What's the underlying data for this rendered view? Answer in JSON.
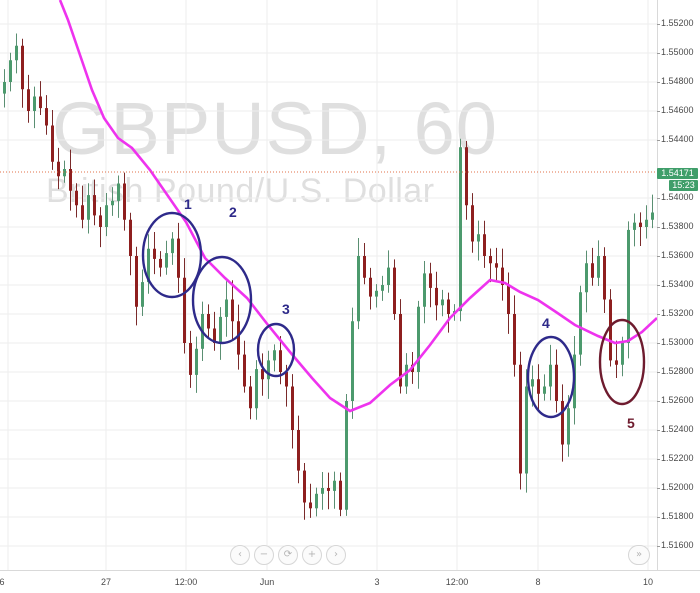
{
  "watermark": {
    "symbol": "GBPUSD, 60",
    "description": "British Pound/U.S. Dollar"
  },
  "price_axis": {
    "ticks": [
      "1.55200",
      "1.55000",
      "1.54800",
      "1.54600",
      "1.54400",
      "1.54000",
      "1.53800",
      "1.53600",
      "1.53400",
      "1.53200",
      "1.53000",
      "1.52800",
      "1.52600",
      "1.52400",
      "1.52200",
      "1.52000",
      "1.51800",
      "1.51600"
    ],
    "current_price": "1.54171",
    "countdown": "15:23"
  },
  "time_axis": {
    "labels": [
      "6",
      "27",
      "12:00",
      "Jun",
      "3",
      "12:00",
      "8",
      "10"
    ]
  },
  "annotations": [
    "1",
    "2",
    "3",
    "4",
    "5"
  ],
  "colors": {
    "up": "#4c9a6d",
    "down": "#8e1f1f",
    "ma": "#ee33ee",
    "circle": "#2e2a8a",
    "circle5": "#6e1b2e",
    "price_line": "#e0704a"
  },
  "navigation": {
    "scroll_left": "‹",
    "zoom_out": "−",
    "reset": "⟳",
    "zoom_in": "+",
    "scroll_right": "›",
    "scroll_end": "»"
  },
  "chart_data": {
    "type": "candlestick",
    "symbol": "GBPUSD",
    "interval": "60",
    "ylim": [
      1.515,
      1.5535
    ],
    "last_price": 1.54171,
    "close_approx": [
      1.548,
      1.5495,
      1.5505,
      1.5475,
      1.546,
      1.547,
      1.5462,
      1.545,
      1.5425,
      1.5415,
      1.542,
      1.5405,
      1.5395,
      1.5385,
      1.5402,
      1.5388,
      1.538,
      1.5395,
      1.5398,
      1.541,
      1.5385,
      1.536,
      1.5325,
      1.5342,
      1.5365,
      1.5358,
      1.5352,
      1.5362,
      1.5372,
      1.5345,
      1.53,
      1.5278,
      1.5296,
      1.532,
      1.531,
      1.53,
      1.5318,
      1.533,
      1.5315,
      1.5292,
      1.527,
      1.5255,
      1.5282,
      1.5275,
      1.5288,
      1.5295,
      1.528,
      1.527,
      1.524,
      1.5212,
      1.519,
      1.5186,
      1.5196,
      1.52,
      1.5198,
      1.5205,
      1.5185,
      1.526,
      1.5315,
      1.536,
      1.5345,
      1.5332,
      1.5336,
      1.534,
      1.5352,
      1.532,
      1.527,
      1.5285,
      1.528,
      1.5325,
      1.5348,
      1.5338,
      1.5326,
      1.533,
      1.532,
      1.5322,
      1.5435,
      1.5395,
      1.537,
      1.5375,
      1.536,
      1.5355,
      1.5352,
      1.534,
      1.532,
      1.5285,
      1.521,
      1.527,
      1.5275,
      1.5265,
      1.527,
      1.5285,
      1.526,
      1.523,
      1.5255,
      1.5292,
      1.5335,
      1.5355,
      1.5345,
      1.536,
      1.533,
      1.5288,
      1.5285,
      1.53,
      1.5378,
      1.5383,
      1.538,
      1.5385,
      1.539,
      1.538
    ],
    "series": [
      {
        "name": "GBPUSD",
        "type": "candles"
      }
    ]
  }
}
